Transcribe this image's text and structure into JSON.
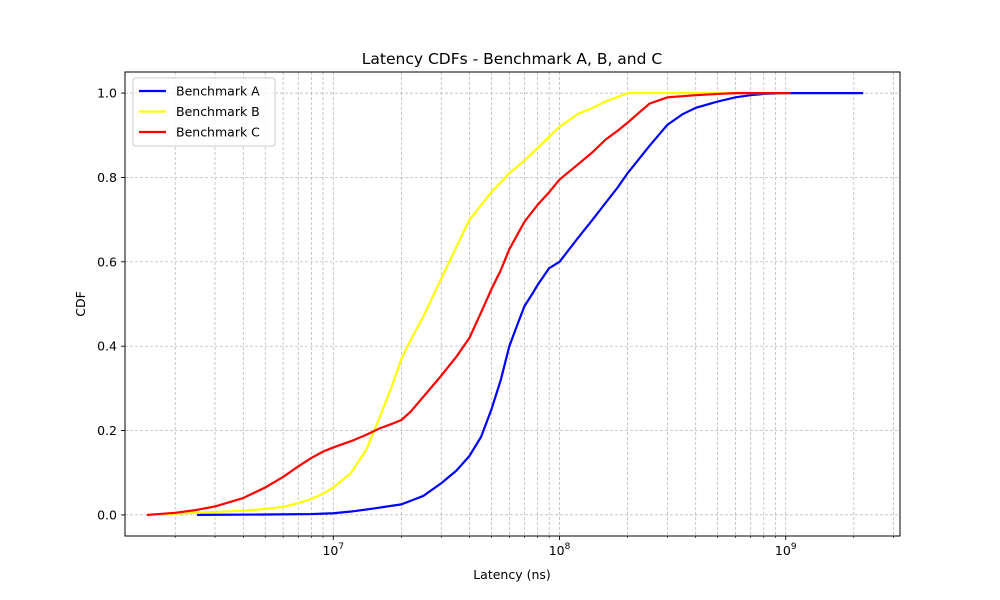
{
  "chart_data": {
    "type": "line",
    "title": "Latency CDFs - Benchmark A, B, and C",
    "xlabel": "Latency (ns)",
    "ylabel": "CDF",
    "xscale": "log",
    "xlim": [
      1200000,
      3200000000
    ],
    "ylim": [
      -0.05,
      1.05
    ],
    "x_major_ticks": [
      {
        "value": 10000000,
        "base": "10",
        "exp": "7"
      },
      {
        "value": 100000000,
        "base": "10",
        "exp": "8"
      },
      {
        "value": 1000000000,
        "base": "10",
        "exp": "9"
      }
    ],
    "y_ticks": [
      {
        "value": 0.0,
        "label": "0.0"
      },
      {
        "value": 0.2,
        "label": "0.2"
      },
      {
        "value": 0.4,
        "label": "0.4"
      },
      {
        "value": 0.6,
        "label": "0.6"
      },
      {
        "value": 0.8,
        "label": "0.8"
      },
      {
        "value": 1.0,
        "label": "1.0"
      }
    ],
    "grid": true,
    "legend_position": "top-left",
    "series": [
      {
        "name": "Benchmark A",
        "color": "#0000ff",
        "x": [
          2500000,
          5000000,
          8000000,
          10000000,
          12000000,
          15000000,
          20000000,
          25000000,
          30000000,
          35000000,
          40000000,
          45000000,
          50000000,
          55000000,
          60000000,
          65000000,
          70000000,
          75000000,
          80000000,
          90000000,
          100000000,
          120000000,
          140000000,
          160000000,
          180000000,
          200000000,
          250000000,
          300000000,
          350000000,
          400000000,
          500000000,
          600000000,
          700000000,
          800000000,
          1000000000,
          1500000000,
          2200000000
        ],
        "y": [
          0.0,
          0.001,
          0.002,
          0.004,
          0.008,
          0.015,
          0.025,
          0.045,
          0.075,
          0.105,
          0.14,
          0.185,
          0.25,
          0.32,
          0.4,
          0.45,
          0.495,
          0.52,
          0.545,
          0.585,
          0.6,
          0.655,
          0.7,
          0.74,
          0.775,
          0.81,
          0.875,
          0.925,
          0.95,
          0.965,
          0.98,
          0.99,
          0.995,
          0.998,
          1.0,
          1.0,
          1.0
        ]
      },
      {
        "name": "Benchmark B",
        "color": "#ffff00",
        "x": [
          1500000,
          2000000,
          3000000,
          4000000,
          5000000,
          6000000,
          7000000,
          8000000,
          9000000,
          10000000,
          12000000,
          14000000,
          16000000,
          18000000,
          20000000,
          22000000,
          25000000,
          30000000,
          35000000,
          40000000,
          50000000,
          60000000,
          70000000,
          80000000,
          100000000,
          120000000,
          140000000,
          160000000,
          200000000,
          250000000,
          300000000,
          400000000,
          500000000,
          600000000,
          800000000,
          1000000000
        ],
        "y": [
          0.0,
          0.003,
          0.007,
          0.01,
          0.014,
          0.019,
          0.028,
          0.038,
          0.05,
          0.065,
          0.1,
          0.155,
          0.23,
          0.3,
          0.37,
          0.415,
          0.47,
          0.56,
          0.635,
          0.7,
          0.765,
          0.81,
          0.84,
          0.87,
          0.92,
          0.95,
          0.965,
          0.98,
          1.0,
          1.0,
          1.0,
          1.0,
          1.0,
          1.0,
          1.0,
          1.0
        ]
      },
      {
        "name": "Benchmark C",
        "color": "#ff0000",
        "x": [
          1500000,
          2000000,
          2500000,
          3000000,
          4000000,
          5000000,
          6000000,
          7000000,
          8000000,
          9000000,
          10000000,
          12000000,
          14000000,
          16000000,
          18000000,
          20000000,
          22000000,
          25000000,
          30000000,
          35000000,
          40000000,
          45000000,
          50000000,
          55000000,
          60000000,
          70000000,
          80000000,
          90000000,
          100000000,
          120000000,
          140000000,
          160000000,
          180000000,
          200000000,
          250000000,
          300000000,
          400000000,
          500000000,
          600000000,
          800000000,
          1000000000,
          1050000000
        ],
        "y": [
          0.0,
          0.005,
          0.012,
          0.02,
          0.04,
          0.065,
          0.09,
          0.115,
          0.135,
          0.15,
          0.16,
          0.175,
          0.19,
          0.205,
          0.215,
          0.225,
          0.245,
          0.28,
          0.33,
          0.375,
          0.42,
          0.48,
          0.535,
          0.58,
          0.63,
          0.695,
          0.735,
          0.765,
          0.795,
          0.83,
          0.86,
          0.89,
          0.91,
          0.93,
          0.975,
          0.99,
          0.995,
          0.998,
          1.0,
          1.0,
          1.0,
          1.0
        ]
      }
    ]
  }
}
